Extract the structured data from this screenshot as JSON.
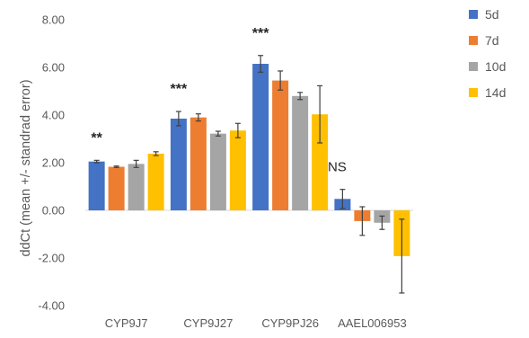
{
  "chart_data": {
    "type": "bar",
    "ylabel": "ddCt (mean +/- standrad error)",
    "xlabel": "",
    "ylim": [
      -4,
      8
    ],
    "yticks": [
      "-4.00",
      "-2.00",
      "0.00",
      "2.00",
      "4.00",
      "6.00",
      "8.00"
    ],
    "ytick_values": [
      -4,
      -2,
      0,
      2,
      4,
      6,
      8
    ],
    "grid": false,
    "legend_position": "right",
    "categories": [
      "CYP9J7",
      "CYP9J27",
      "CYP9PJ26",
      "AAEL006953"
    ],
    "series": [
      {
        "name": "5d",
        "color": "#4472C4",
        "values": [
          2.05,
          3.85,
          6.15,
          0.48
        ],
        "errors": [
          0.05,
          0.3,
          0.35,
          0.4
        ]
      },
      {
        "name": "7d",
        "color": "#ED7D31",
        "values": [
          1.83,
          3.9,
          5.45,
          -0.45
        ],
        "errors": [
          0.03,
          0.15,
          0.4,
          0.6
        ]
      },
      {
        "name": "10d",
        "color": "#A5A5A5",
        "values": [
          1.95,
          3.22,
          4.8,
          -0.52
        ],
        "errors": [
          0.15,
          0.1,
          0.15,
          0.28
        ]
      },
      {
        "name": "14d",
        "color": "#FFC000",
        "values": [
          2.38,
          3.35,
          4.03,
          -1.92
        ],
        "errors": [
          0.08,
          0.3,
          1.2,
          1.55
        ]
      }
    ],
    "annotations": [
      "**",
      "***",
      "***",
      "NS"
    ]
  }
}
